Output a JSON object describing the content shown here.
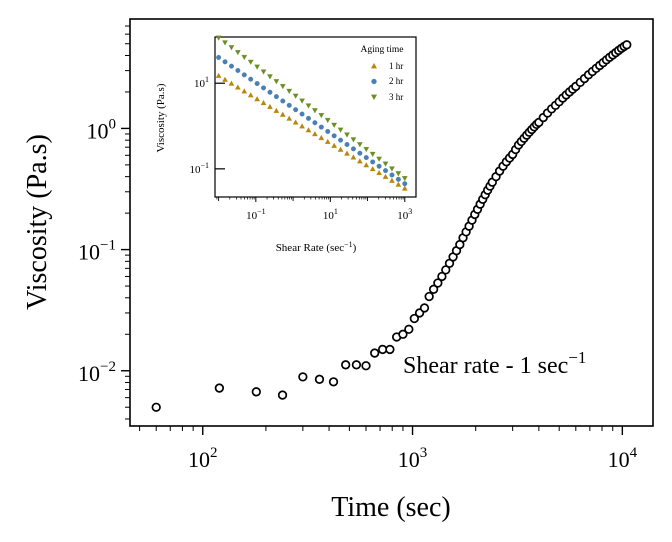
{
  "chart_data": [
    {
      "type": "scatter",
      "xscale": "log",
      "yscale": "log",
      "xlabel": "Time (sec)",
      "ylabel": "Viscosity (Pa.s)",
      "xlim": [
        45,
        14000
      ],
      "ylim": [
        0.0035,
        8
      ],
      "x_ticks": [
        {
          "value": 100,
          "base": "10",
          "exp": "2"
        },
        {
          "value": 1000,
          "base": "10",
          "exp": "3"
        },
        {
          "value": 10000,
          "base": "10",
          "exp": "4"
        }
      ],
      "y_ticks": [
        {
          "value": 0.01,
          "base": "10",
          "exp": "−2"
        },
        {
          "value": 0.1,
          "base": "10",
          "exp": "−1"
        },
        {
          "value": 1,
          "base": "10",
          "exp": "0"
        }
      ],
      "annotation": {
        "text": "Shear rate - 1 sec",
        "exp": "−1"
      },
      "points": [
        [
          60,
          0.005
        ],
        [
          120,
          0.0072
        ],
        [
          180,
          0.0067
        ],
        [
          240,
          0.0063
        ],
        [
          300,
          0.0089
        ],
        [
          360,
          0.0085
        ],
        [
          420,
          0.0081
        ],
        [
          480,
          0.0112
        ],
        [
          540,
          0.0112
        ],
        [
          600,
          0.011
        ],
        [
          660,
          0.014
        ],
        [
          720,
          0.015
        ],
        [
          780,
          0.015
        ],
        [
          840,
          0.019
        ],
        [
          900,
          0.02
        ],
        [
          960,
          0.022
        ],
        [
          1020,
          0.027
        ],
        [
          1080,
          0.03
        ],
        [
          1140,
          0.033
        ],
        [
          1200,
          0.041
        ],
        [
          1260,
          0.047
        ],
        [
          1320,
          0.053
        ],
        [
          1380,
          0.06
        ],
        [
          1440,
          0.068
        ],
        [
          1500,
          0.077
        ],
        [
          1560,
          0.087
        ],
        [
          1620,
          0.098
        ],
        [
          1680,
          0.11
        ],
        [
          1740,
          0.125
        ],
        [
          1800,
          0.14
        ],
        [
          1860,
          0.156
        ],
        [
          1920,
          0.175
        ],
        [
          1980,
          0.195
        ],
        [
          2040,
          0.215
        ],
        [
          2100,
          0.237
        ],
        [
          2160,
          0.26
        ],
        [
          2220,
          0.284
        ],
        [
          2280,
          0.309
        ],
        [
          2340,
          0.334
        ],
        [
          2400,
          0.36
        ],
        [
          2500,
          0.4
        ],
        [
          2600,
          0.445
        ],
        [
          2700,
          0.488
        ],
        [
          2800,
          0.53
        ],
        [
          2900,
          0.57
        ],
        [
          3000,
          0.61
        ],
        [
          3100,
          0.67
        ],
        [
          3200,
          0.73
        ],
        [
          3300,
          0.78
        ],
        [
          3400,
          0.83
        ],
        [
          3500,
          0.88
        ],
        [
          3600,
          0.93
        ],
        [
          3700,
          0.98
        ],
        [
          3800,
          1.03
        ],
        [
          3900,
          1.08
        ],
        [
          4000,
          1.12
        ],
        [
          4200,
          1.23
        ],
        [
          4400,
          1.34
        ],
        [
          4600,
          1.45
        ],
        [
          4800,
          1.55
        ],
        [
          5000,
          1.66
        ],
        [
          5200,
          1.78
        ],
        [
          5400,
          1.89
        ],
        [
          5600,
          2.0
        ],
        [
          5800,
          2.11
        ],
        [
          6000,
          2.22
        ],
        [
          6300,
          2.4
        ],
        [
          6600,
          2.58
        ],
        [
          6900,
          2.77
        ],
        [
          7200,
          2.95
        ],
        [
          7500,
          3.13
        ],
        [
          7800,
          3.31
        ],
        [
          8100,
          3.49
        ],
        [
          8400,
          3.68
        ],
        [
          8700,
          3.86
        ],
        [
          9000,
          4.04
        ],
        [
          9300,
          4.22
        ],
        [
          9600,
          4.4
        ],
        [
          9900,
          4.58
        ],
        [
          10200,
          4.75
        ],
        [
          10500,
          4.9
        ]
      ]
    },
    {
      "type": "scatter",
      "inset": true,
      "xscale": "log",
      "yscale": "log",
      "xlabel": "Shear Rate (sec",
      "xlabel_exp": "−1",
      "xlabel_close": ")",
      "ylabel": "Viscosity (Pa.s)",
      "xlim": [
        0.008,
        2000
      ],
      "ylim": [
        0.022,
        120
      ],
      "x_ticks": [
        {
          "value": 0.1,
          "base": "10",
          "exp": "−1"
        },
        {
          "value": 10,
          "base": "10",
          "exp": "1"
        },
        {
          "value": 1000,
          "base": "10",
          "exp": "3"
        }
      ],
      "y_ticks": [
        {
          "value": 0.1,
          "base": "10",
          "exp": "−1"
        },
        {
          "value": 10,
          "base": "10",
          "exp": "1"
        }
      ],
      "legend": {
        "title": "Aging time",
        "position": "top-right"
      },
      "series": [
        {
          "name": "1 hr",
          "marker": "triangle-up",
          "color": "#b8860b",
          "x_range": [
            0.01,
            1000
          ],
          "y_range": [
            15,
            0.035
          ],
          "count": 30
        },
        {
          "name": "2 hr",
          "marker": "circle",
          "color": "#4a7fb5",
          "x_range": [
            0.01,
            1000
          ],
          "y_range": [
            40,
            0.045
          ],
          "count": 30
        },
        {
          "name": "3 hr",
          "marker": "triangle-down",
          "color": "#6b8e23",
          "x_range": [
            0.01,
            1000
          ],
          "y_range": [
            115,
            0.06
          ],
          "count": 30
        }
      ]
    }
  ]
}
